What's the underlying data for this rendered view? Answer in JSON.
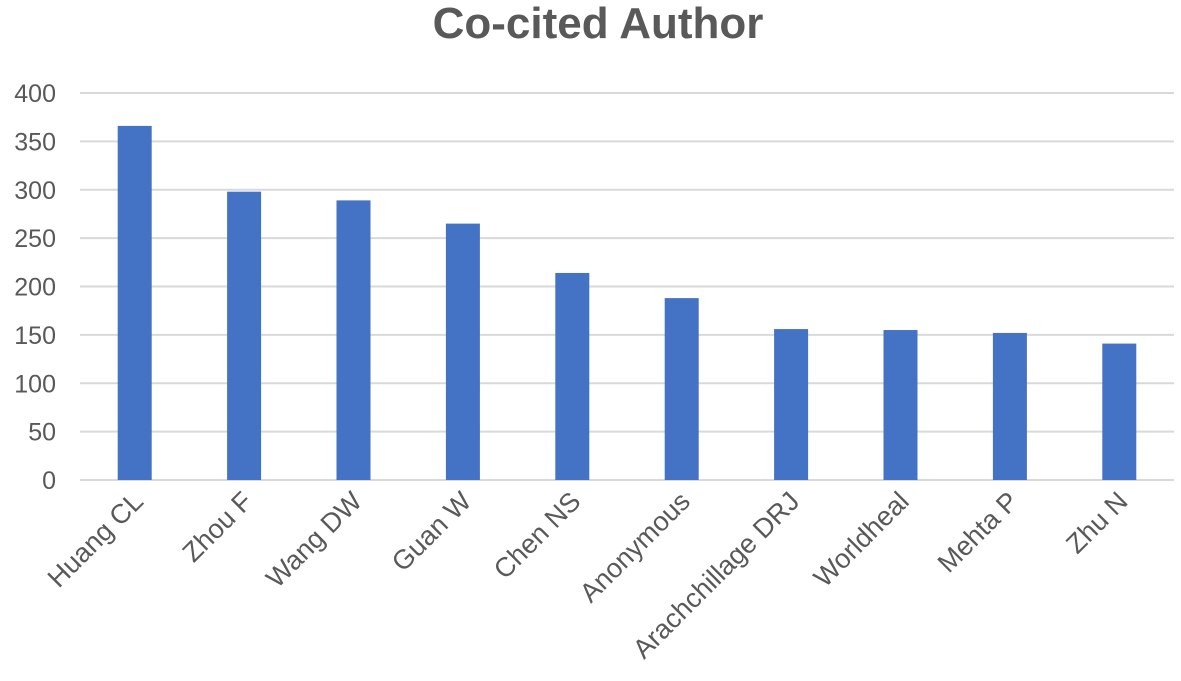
{
  "chart_data": {
    "type": "bar",
    "title": "Co-cited Author",
    "xlabel": "",
    "ylabel": "",
    "categories": [
      "Huang CL",
      "Zhou F",
      "Wang DW",
      "Guan W",
      "Chen NS",
      "Anonymous",
      "Arachchillage DRJ",
      "Worldheal",
      "Mehta P",
      "Zhu N"
    ],
    "values": [
      366,
      298,
      289,
      265,
      214,
      188,
      156,
      155,
      152,
      141
    ],
    "ylim": [
      0,
      400
    ],
    "yticks": [
      0,
      50,
      100,
      150,
      200,
      250,
      300,
      350,
      400
    ],
    "grid": true,
    "legend": "none",
    "bar_color": "#4472c4"
  }
}
